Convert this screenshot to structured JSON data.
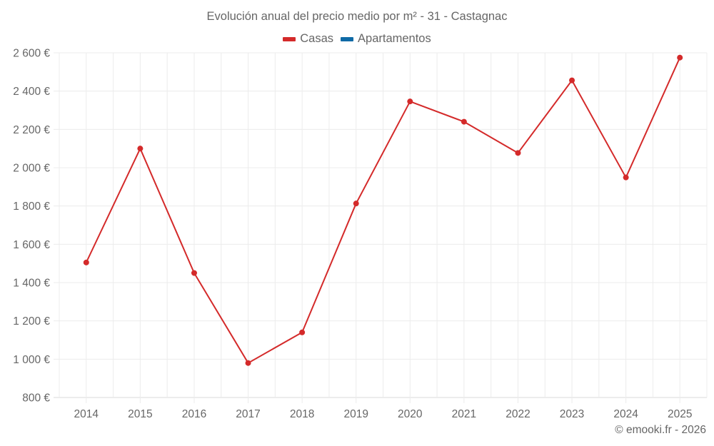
{
  "title": "Evolución anual del precio medio por m² - 31 - Castagnac",
  "legend": [
    {
      "label": "Casas",
      "color": "#d42a2a"
    },
    {
      "label": "Apartamentos",
      "color": "#0f6aa6"
    }
  ],
  "footer": "© emooki.fr - 2026",
  "chart_data": {
    "type": "line",
    "title": "Evolución anual del precio medio por m² - 31 - Castagnac",
    "xlabel": "",
    "ylabel": "",
    "categories": [
      "2014",
      "2015",
      "2016",
      "2017",
      "2018",
      "2019",
      "2020",
      "2021",
      "2022",
      "2023",
      "2024",
      "2025"
    ],
    "series": [
      {
        "name": "Casas",
        "color": "#d42a2a",
        "values": [
          1505,
          2100,
          1450,
          980,
          1140,
          1813,
          2346,
          2240,
          2077,
          2456,
          1949,
          2575
        ]
      },
      {
        "name": "Apartamentos",
        "color": "#0f6aa6",
        "values": []
      }
    ],
    "ylim": [
      800,
      2600
    ],
    "yticks": [
      800,
      1000,
      1200,
      1400,
      1600,
      1800,
      2000,
      2200,
      2400,
      2600
    ],
    "ytick_labels": [
      "800 €",
      "1 000 €",
      "1 200 €",
      "1 400 €",
      "1 600 €",
      "1 800 €",
      "2 000 €",
      "2 200 €",
      "2 400 €",
      "2 600 €"
    ],
    "grid": true,
    "legend_position": "top"
  }
}
